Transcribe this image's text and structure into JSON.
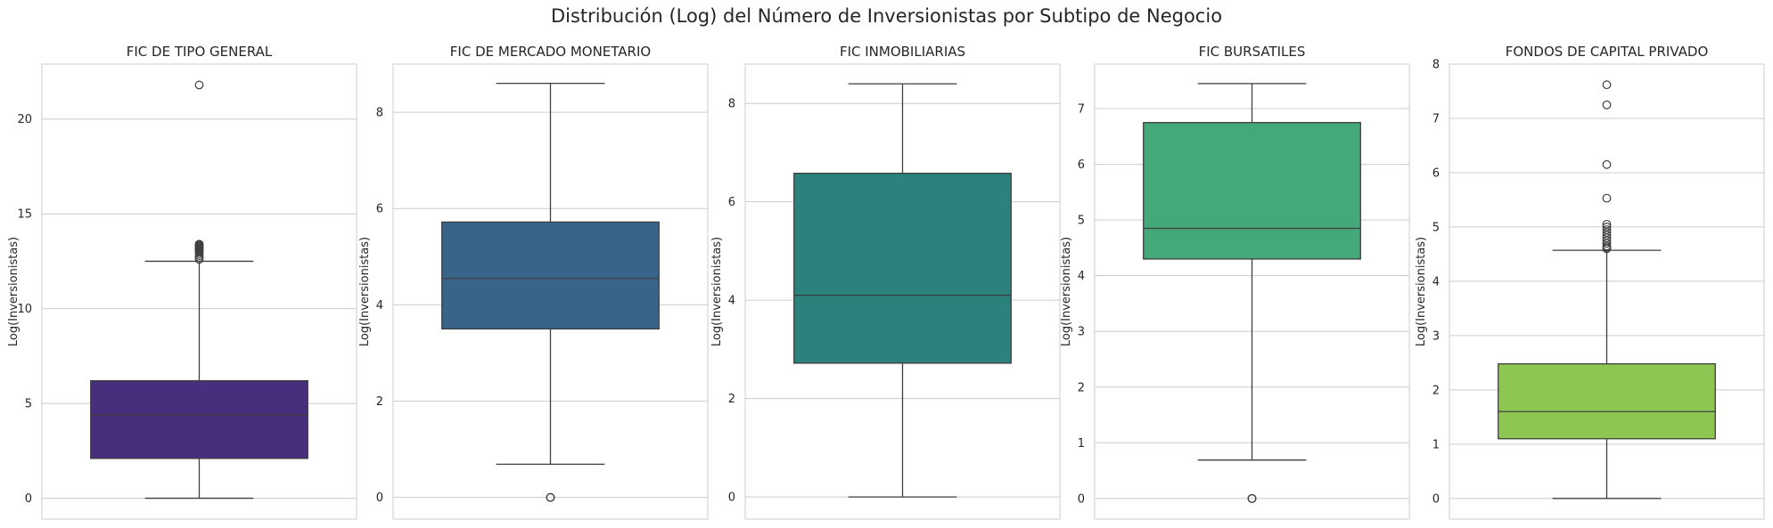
{
  "title": "Distribución (Log) del Número de Inversionistas por Subtipo de Negocio",
  "chart_data": [
    {
      "type": "box",
      "title": "FIC DE TIPO GENERAL",
      "xlabel": "",
      "ylabel": "Log(Inversionistas)",
      "ylim": [
        -1.1,
        22.9
      ],
      "yticks": [
        0,
        5,
        10,
        15,
        20
      ],
      "grid": true,
      "color": "#482f7e",
      "box": {
        "whisker_low": 0.0,
        "q1": 2.1,
        "median": 4.4,
        "q3": 6.2,
        "whisker_high": 12.5
      },
      "outliers": [
        12.6,
        12.7,
        12.8,
        12.9,
        13.0,
        13.05,
        13.1,
        13.15,
        13.2,
        13.25,
        13.3,
        13.35,
        13.4,
        21.8
      ]
    },
    {
      "type": "box",
      "title": "FIC DE MERCADO MONETARIO",
      "xlabel": "",
      "ylabel": "Log(Inversionistas)",
      "ylim": [
        -0.45,
        9.0
      ],
      "yticks": [
        0,
        2,
        4,
        6,
        8
      ],
      "grid": true,
      "color": "#38648a",
      "box": {
        "whisker_low": 0.69,
        "q1": 3.5,
        "median": 4.55,
        "q3": 5.72,
        "whisker_high": 8.6
      },
      "outliers": [
        0.0,
        0.0,
        0.0
      ]
    },
    {
      "type": "box",
      "title": "FIC INMOBILIARIAS",
      "xlabel": "",
      "ylabel": "Log(Inversionistas)",
      "ylim": [
        -0.45,
        8.8
      ],
      "yticks": [
        0,
        2,
        4,
        6,
        8
      ],
      "grid": true,
      "color": "#2b827c",
      "box": {
        "whisker_low": 0.0,
        "q1": 2.72,
        "median": 4.1,
        "q3": 6.58,
        "whisker_high": 8.4
      },
      "outliers": []
    },
    {
      "type": "box",
      "title": "FIC BURSATILES",
      "xlabel": "",
      "ylabel": "Log(Inversionistas)",
      "ylim": [
        -0.37,
        7.8
      ],
      "yticks": [
        0,
        1,
        2,
        3,
        4,
        5,
        6,
        7
      ],
      "grid": true,
      "color": "#44a878",
      "box": {
        "whisker_low": 0.69,
        "q1": 4.3,
        "median": 4.85,
        "q3": 6.75,
        "whisker_high": 7.45
      },
      "outliers": [
        0.0,
        0.0,
        0.0
      ]
    },
    {
      "type": "box",
      "title": "FONDOS DE CAPITAL PRIVADO",
      "xlabel": "",
      "ylabel": "Log(Inversionistas)",
      "ylim": [
        -0.38,
        8.0
      ],
      "yticks": [
        0,
        1,
        2,
        3,
        4,
        5,
        6,
        7,
        8
      ],
      "grid": true,
      "color": "#8dc653",
      "box": {
        "whisker_low": 0.0,
        "q1": 1.1,
        "median": 1.6,
        "q3": 2.48,
        "whisker_high": 4.57
      },
      "outliers": [
        4.6,
        4.62,
        4.65,
        4.7,
        4.75,
        4.8,
        4.85,
        4.9,
        4.95,
        5.0,
        5.05,
        5.53,
        6.15,
        7.25,
        7.62
      ]
    }
  ]
}
